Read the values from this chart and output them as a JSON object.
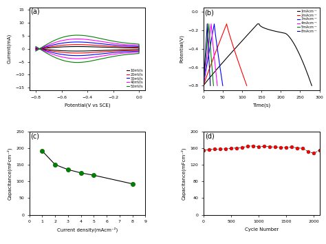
{
  "cv_colors": [
    "black",
    "red",
    "blue",
    "magenta",
    "green"
  ],
  "cv_labels": [
    "10mV/s",
    "20mV/s",
    "30mV/s",
    "40mV/s",
    "50mV/s"
  ],
  "cv_scales": [
    1.5,
    2.8,
    4.5,
    6.5,
    9.0
  ],
  "gcd_colors": [
    "black",
    "red",
    "blue",
    "magenta",
    "green",
    "navy"
  ],
  "gcd_labels": [
    "1mAcm⁻²",
    "2mAcm⁻²",
    "3mAcm⁻²",
    "4mAcm⁻²",
    "5mAcm⁻²",
    "8mAcm⁻²"
  ],
  "gcd_charge_end_times": [
    140,
    60,
    28,
    20,
    14,
    10
  ],
  "gcd_discharge_end_times": [
    280,
    112,
    50,
    36,
    26,
    18
  ],
  "cap_x": [
    1,
    2,
    3,
    4,
    5,
    8
  ],
  "cap_y": [
    192,
    151,
    136,
    126,
    119,
    93
  ],
  "cycle_x": [
    0,
    100,
    200,
    300,
    400,
    500,
    600,
    700,
    800,
    900,
    1000,
    1100,
    1200,
    1300,
    1400,
    1500,
    1600,
    1700,
    1800,
    1900,
    2000,
    2100
  ],
  "cycle_y": [
    155,
    157,
    158,
    158,
    159,
    160,
    161,
    162,
    165,
    166,
    164,
    165,
    164,
    163,
    162,
    162,
    163,
    161,
    160,
    152,
    148,
    156
  ],
  "background_color": "white",
  "fig_width": 4.74,
  "fig_height": 3.54
}
